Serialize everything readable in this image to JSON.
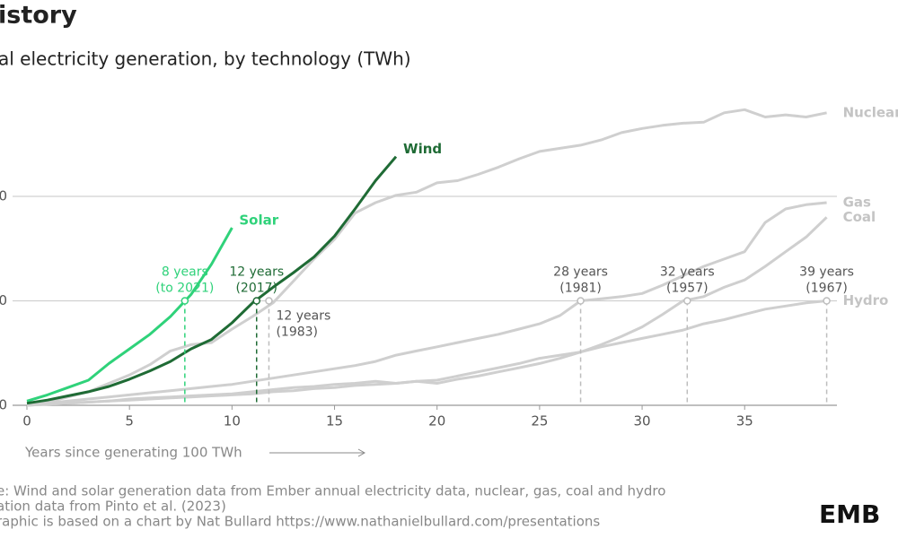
{
  "chart_data": {
    "type": "line",
    "title": "istory",
    "subtitle": "al electricity generation, by technology (TWh)",
    "x_label": "Years since generating 100 TWh",
    "x": [
      0,
      1,
      2,
      3,
      4,
      5,
      6,
      7,
      8,
      9,
      10,
      11,
      12,
      13,
      14,
      15,
      16,
      17,
      18,
      19,
      20,
      21,
      22,
      23,
      24,
      25,
      26,
      27,
      28,
      29,
      30,
      31,
      32,
      33,
      34,
      35,
      36,
      37,
      38,
      39
    ],
    "xlim": [
      0,
      39.5
    ],
    "xticks": [
      0,
      5,
      10,
      15,
      20,
      25,
      30,
      35
    ],
    "ylim": [
      0,
      3000
    ],
    "yticks": [
      0,
      {
        "value": 1000,
        "label": "0"
      },
      {
        "value": 2000,
        "label": "0"
      }
    ],
    "grid": true,
    "series": [
      {
        "name": "Nuclear",
        "color": "#cfcfcf",
        "values": [
          0,
          30,
          80,
          130,
          210,
          290,
          390,
          520,
          580,
          600,
          730,
          850,
          980,
          1190,
          1400,
          1590,
          1840,
          1940,
          2010,
          2040,
          2130,
          2150,
          2210,
          2280,
          2360,
          2430,
          2460,
          2490,
          2540,
          2610,
          2650,
          2680,
          2700,
          2710,
          2800,
          2830,
          2760,
          2780,
          2760,
          2800
        ]
      },
      {
        "name": "Gas",
        "color": "#cfcfcf",
        "values": [
          0,
          20,
          40,
          60,
          80,
          100,
          120,
          140,
          160,
          180,
          200,
          230,
          260,
          290,
          320,
          350,
          380,
          420,
          480,
          520,
          560,
          600,
          640,
          680,
          730,
          780,
          860,
          1000,
          1020,
          1040,
          1070,
          1150,
          1240,
          1330,
          1400,
          1470,
          1750,
          1880,
          1920,
          1940
        ]
      },
      {
        "name": "Coal",
        "color": "#cfcfcf",
        "values": [
          0,
          10,
          20,
          30,
          40,
          60,
          70,
          80,
          90,
          100,
          110,
          130,
          150,
          170,
          180,
          200,
          210,
          230,
          210,
          230,
          210,
          250,
          280,
          320,
          360,
          400,
          450,
          510,
          580,
          660,
          750,
          870,
          1000,
          1040,
          1130,
          1200,
          1330,
          1470,
          1610,
          1800
        ]
      },
      {
        "name": "Hydro",
        "color": "#cfcfcf",
        "values": [
          0,
          10,
          20,
          30,
          40,
          50,
          60,
          70,
          80,
          90,
          100,
          110,
          130,
          140,
          160,
          170,
          190,
          200,
          210,
          230,
          240,
          280,
          320,
          360,
          400,
          450,
          480,
          510,
          560,
          600,
          640,
          680,
          720,
          780,
          820,
          870,
          920,
          950,
          980,
          1000
        ]
      },
      {
        "name": "Solar",
        "color": "#2fd27a",
        "values": [
          40,
          100,
          170,
          240,
          400,
          540,
          680,
          850,
          1060,
          1350,
          1700,
          null,
          null,
          null,
          null,
          null,
          null,
          null,
          null,
          null,
          null,
          null,
          null,
          null,
          null,
          null,
          null,
          null,
          null,
          null,
          null,
          null,
          null,
          null,
          null,
          null,
          null,
          null,
          null,
          null
        ]
      },
      {
        "name": "Wind",
        "color": "#1f6b35",
        "values": [
          20,
          50,
          90,
          130,
          180,
          250,
          330,
          420,
          540,
          630,
          790,
          980,
          1130,
          1270,
          1420,
          1620,
          1880,
          2150,
          2380,
          null,
          null,
          null,
          null,
          null,
          null,
          null,
          null,
          null,
          null,
          null,
          null,
          null,
          null,
          null,
          null,
          null,
          null,
          null,
          null,
          null
        ]
      }
    ],
    "annotations": [
      {
        "label": [
          "8 years",
          "(to 2021)"
        ],
        "x": 7.7,
        "y": 1000,
        "color": "#2fd27a"
      },
      {
        "label": [
          "12 years",
          "(2017)"
        ],
        "x": 11.2,
        "y": 1000,
        "color": "#1f6b35"
      },
      {
        "label": [
          "12 years",
          "(1983)"
        ],
        "x": 11.8,
        "y": 1000,
        "color": "#bdbdbd"
      },
      {
        "label": [
          "28 years",
          "(1981)"
        ],
        "x": 27,
        "y": 1000,
        "color": "#bdbdbd"
      },
      {
        "label": [
          "32 years",
          "(1957)"
        ],
        "x": 32.2,
        "y": 1000,
        "color": "#bdbdbd"
      },
      {
        "label": [
          "39 years",
          "(1967)"
        ],
        "x": 39,
        "y": 1000,
        "color": "#bdbdbd"
      }
    ]
  },
  "source": [
    "e: Wind and solar generation data from Ember annual electricity data, nuclear, gas, coal and hydro",
    "ation data from Pinto et al. (2023)",
    "raphic is based on a chart by Nat Bullard https://www.nathanielbullard.com/presentations"
  ],
  "logo": "EMB"
}
